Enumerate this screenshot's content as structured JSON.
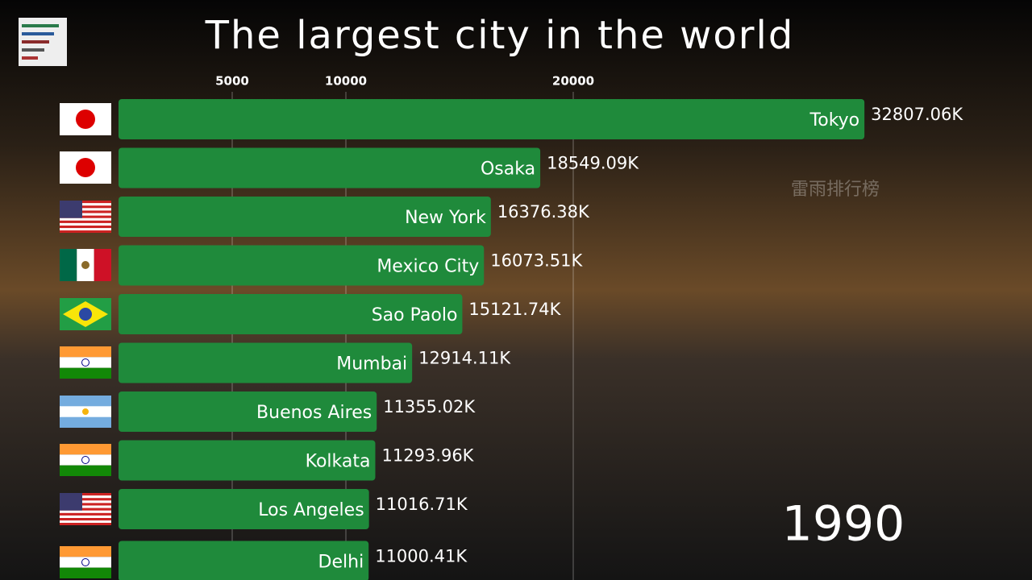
{
  "chart_data": {
    "type": "bar",
    "orientation": "horizontal",
    "title": "The largest city in the world",
    "categories": [
      "Tokyo",
      "Osaka",
      "New York",
      "Mexico City",
      "Sao Paolo",
      "Mumbai",
      "Buenos Aires",
      "Kolkata",
      "Los Angeles",
      "Delhi"
    ],
    "values": [
      32807.06,
      18549.09,
      16376.38,
      16073.51,
      15121.74,
      12914.11,
      11355.02,
      11293.96,
      11016.71,
      11000.41
    ],
    "value_labels": [
      "32807.06K",
      "18549.09K",
      "16376.38K",
      "16073.51K",
      "15121.74K",
      "12914.11K",
      "11355.02K",
      "11293.96K",
      "11016.71K",
      "11000.41K"
    ],
    "color": "#1f8a3b",
    "xlim": [
      0,
      40000
    ],
    "xticks": [
      5000,
      10000,
      20000
    ],
    "grid": true,
    "annotation": "1990",
    "watermark": "雷雨排行榜"
  }
}
